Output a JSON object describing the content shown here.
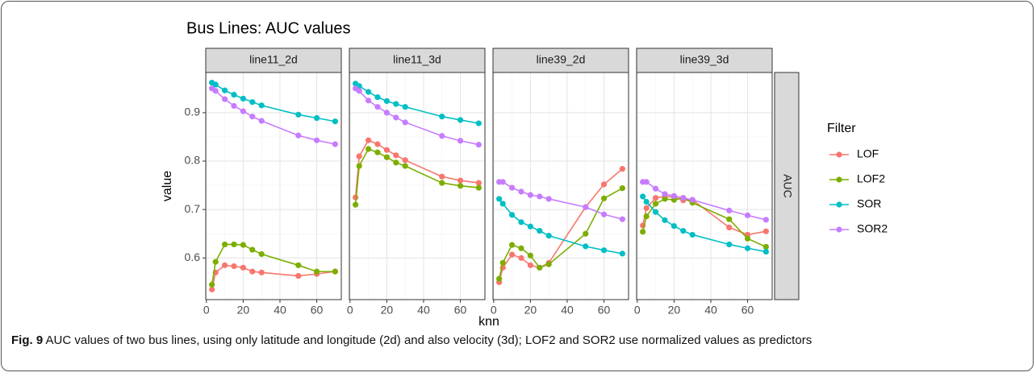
{
  "title": "Bus Lines: AUC values",
  "x_label": "knn",
  "y_label": "value",
  "facet_row_label": "AUC",
  "legend_title": "Filter",
  "caption": {
    "label": "Fig. 9",
    "text": "AUC values of two bus lines, using only latitude and longitude (2d) and also velocity (3d); LOF2 and SOR2 use normalized values as predictors"
  },
  "chart_data": [
    {
      "type": "line",
      "title": "line11_2d",
      "x": [
        3,
        5,
        10,
        15,
        20,
        25,
        30,
        50,
        60,
        70
      ],
      "xlim": [
        -0.35,
        73.35
      ],
      "xticks": [
        0,
        20,
        40,
        60
      ],
      "ylim": [
        0.514,
        0.983
      ],
      "yticks": [
        0.6,
        0.7,
        0.8,
        0.9
      ],
      "grid": true,
      "series": [
        {
          "name": "LOF",
          "color": "#F8766D",
          "values": [
            0.535,
            0.57,
            0.585,
            0.583,
            0.58,
            0.572,
            0.57,
            0.563,
            0.567,
            0.572
          ]
        },
        {
          "name": "LOF2",
          "color": "#7CAE00",
          "values": [
            0.545,
            0.592,
            0.628,
            0.628,
            0.627,
            0.617,
            0.608,
            0.585,
            0.572,
            0.572
          ]
        },
        {
          "name": "SOR",
          "color": "#00BFC4",
          "values": [
            0.962,
            0.958,
            0.946,
            0.937,
            0.929,
            0.922,
            0.915,
            0.896,
            0.889,
            0.882
          ]
        },
        {
          "name": "SOR2",
          "color": "#C77CFF",
          "values": [
            0.95,
            0.945,
            0.928,
            0.914,
            0.903,
            0.892,
            0.883,
            0.853,
            0.843,
            0.835
          ]
        }
      ]
    },
    {
      "type": "line",
      "title": "line11_3d",
      "x": [
        3,
        5,
        10,
        15,
        20,
        25,
        30,
        50,
        60,
        70
      ],
      "xlim": [
        -0.35,
        73.35
      ],
      "xticks": [
        0,
        20,
        40,
        60
      ],
      "ylim": [
        0.514,
        0.983
      ],
      "yticks": [
        0.6,
        0.7,
        0.8,
        0.9
      ],
      "grid": true,
      "series": [
        {
          "name": "LOF",
          "color": "#F8766D",
          "values": [
            0.725,
            0.81,
            0.843,
            0.835,
            0.823,
            0.812,
            0.802,
            0.768,
            0.76,
            0.755
          ]
        },
        {
          "name": "LOF2",
          "color": "#7CAE00",
          "values": [
            0.71,
            0.79,
            0.825,
            0.818,
            0.808,
            0.797,
            0.79,
            0.755,
            0.749,
            0.745
          ]
        },
        {
          "name": "SOR",
          "color": "#00BFC4",
          "values": [
            0.96,
            0.955,
            0.943,
            0.932,
            0.924,
            0.918,
            0.912,
            0.892,
            0.885,
            0.878
          ]
        },
        {
          "name": "SOR2",
          "color": "#C77CFF",
          "values": [
            0.95,
            0.945,
            0.925,
            0.912,
            0.9,
            0.89,
            0.88,
            0.852,
            0.842,
            0.834
          ]
        }
      ]
    },
    {
      "type": "line",
      "title": "line39_2d",
      "x": [
        3,
        5,
        10,
        15,
        20,
        25,
        30,
        50,
        60,
        70
      ],
      "xlim": [
        -0.35,
        73.35
      ],
      "xticks": [
        0,
        20,
        40,
        60
      ],
      "ylim": [
        0.514,
        0.983
      ],
      "yticks": [
        0.6,
        0.7,
        0.8,
        0.9
      ],
      "grid": true,
      "series": [
        {
          "name": "LOF",
          "color": "#F8766D",
          "values": [
            0.55,
            0.58,
            0.607,
            0.6,
            0.585,
            0.58,
            0.59,
            0.705,
            0.752,
            0.784
          ]
        },
        {
          "name": "LOF2",
          "color": "#7CAE00",
          "values": [
            0.557,
            0.59,
            0.627,
            0.62,
            0.605,
            0.58,
            0.587,
            0.65,
            0.723,
            0.744
          ]
        },
        {
          "name": "SOR",
          "color": "#00BFC4",
          "values": [
            0.722,
            0.712,
            0.689,
            0.674,
            0.665,
            0.656,
            0.646,
            0.624,
            0.616,
            0.609
          ]
        },
        {
          "name": "SOR2",
          "color": "#C77CFF",
          "values": [
            0.757,
            0.757,
            0.745,
            0.737,
            0.73,
            0.727,
            0.722,
            0.705,
            0.69,
            0.68
          ]
        }
      ]
    },
    {
      "type": "line",
      "title": "line39_3d",
      "x": [
        3,
        5,
        10,
        15,
        20,
        25,
        30,
        50,
        60,
        70
      ],
      "xlim": [
        -0.35,
        73.35
      ],
      "xticks": [
        0,
        20,
        40,
        60
      ],
      "ylim": [
        0.514,
        0.983
      ],
      "yticks": [
        0.6,
        0.7,
        0.8,
        0.9
      ],
      "grid": true,
      "series": [
        {
          "name": "LOF",
          "color": "#F8766D",
          "values": [
            0.667,
            0.703,
            0.724,
            0.727,
            0.726,
            0.719,
            0.72,
            0.663,
            0.648,
            0.655
          ]
        },
        {
          "name": "LOF2",
          "color": "#7CAE00",
          "values": [
            0.654,
            0.686,
            0.712,
            0.722,
            0.72,
            0.724,
            0.714,
            0.68,
            0.64,
            0.623
          ]
        },
        {
          "name": "SOR",
          "color": "#00BFC4",
          "values": [
            0.727,
            0.716,
            0.695,
            0.678,
            0.666,
            0.656,
            0.648,
            0.628,
            0.62,
            0.613
          ]
        },
        {
          "name": "SOR2",
          "color": "#C77CFF",
          "values": [
            0.757,
            0.757,
            0.743,
            0.732,
            0.728,
            0.724,
            0.72,
            0.698,
            0.688,
            0.679
          ]
        }
      ]
    }
  ]
}
